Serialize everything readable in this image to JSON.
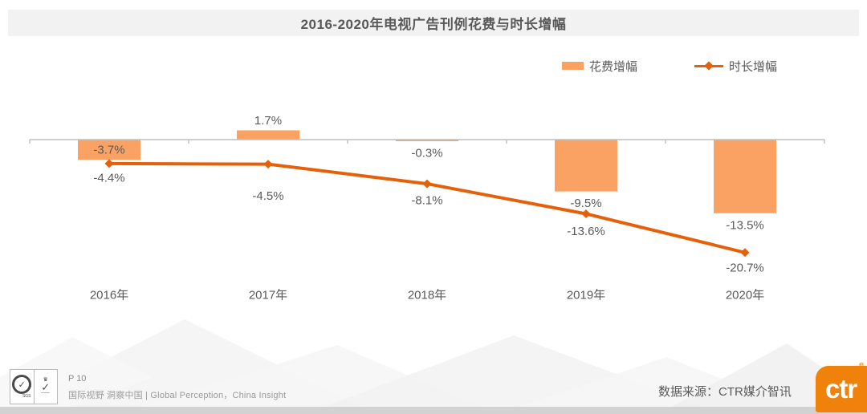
{
  "slide": {
    "title": "2016-2020年电视广告刊例花费与时长增幅"
  },
  "legend": {
    "items": [
      {
        "label": "花费增幅",
        "swatch": "bar-swatch-icon"
      },
      {
        "label": "时长增幅",
        "swatch": "line-swatch-icon"
      }
    ]
  },
  "chart_data": {
    "type": "bar",
    "title": "2016-2020年电视广告刊例花费与时长增幅",
    "categories": [
      "2016年",
      "2017年",
      "2018年",
      "2019年",
      "2020年"
    ],
    "series": [
      {
        "name": "花费增幅",
        "chart": "bar",
        "color": "#FAA263",
        "values": [
          -3.7,
          1.7,
          -0.3,
          -9.5,
          -13.5
        ],
        "labels": [
          "-3.7%",
          "1.7%",
          "-0.3%",
          "-9.5%",
          "-13.5%"
        ]
      },
      {
        "name": "时长增幅",
        "chart": "line",
        "color": "#E4610A",
        "values": [
          -4.4,
          -4.5,
          -8.1,
          -13.6,
          -20.7
        ],
        "labels": [
          "-4.4%",
          "-4.5%",
          "-8.1%",
          "-13.6%",
          "-20.7%"
        ]
      }
    ],
    "ylim": [
      -24,
      4
    ],
    "grid": false,
    "legend_position": "top-right",
    "xlabel": "",
    "ylabel": ""
  },
  "footer": {
    "page_number": "P 10",
    "tagline": "国际视野 洞察中国 |  Global Perception，China Insight",
    "source_label": "数据来源：CTR媒介智讯",
    "logo_text": "ctr",
    "logo_mark": "e",
    "sgs_label": "SGS"
  },
  "colors": {
    "bar": "#FAA263",
    "line": "#E4610A",
    "axis": "#BFBFBF",
    "label_text": "#595959",
    "title_bg": "#F2F2F2",
    "logo_orange": "#F0820C"
  }
}
